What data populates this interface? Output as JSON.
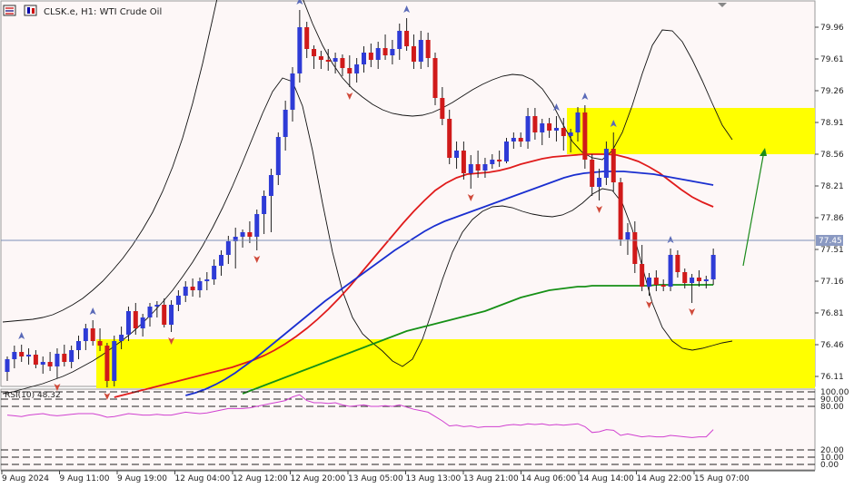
{
  "header": {
    "title": "CLSK.e, H1:  WTI Crude Oil"
  },
  "colors": {
    "background": "#fdf7f7",
    "bull": "#2e3bd6",
    "bear": "#d01a1a",
    "zone": "#ffff00",
    "ma_red": "#e01b1b",
    "ma_blue": "#1a2fd0",
    "ma_green": "#169016",
    "rsi": "#d040d0",
    "arrow": "#1a8a1a"
  },
  "price_panel": {
    "last_price_label": "77.45",
    "ticks": [
      "79.96",
      "79.61",
      "79.26",
      "78.91",
      "78.56",
      "78.21",
      "77.86",
      "77.51",
      "77.16",
      "76.81",
      "76.46",
      "76.11"
    ]
  },
  "rsi_panel": {
    "label": "RSI(10) 48.32",
    "ticks": [
      "100.00",
      "90.00",
      "80.00",
      "20.00",
      "10.00",
      "0.00"
    ]
  },
  "time_axis": [
    "9 Aug 2024",
    "9 Aug 11:00",
    "9 Aug 19:00",
    "12 Aug 04:00",
    "12 Aug 12:00",
    "12 Aug 20:00",
    "13 Aug 05:00",
    "13 Aug 13:00",
    "13 Aug 21:00",
    "14 Aug 06:00",
    "14 Aug 14:00",
    "14 Aug 22:00",
    "15 Aug 07:00"
  ],
  "chart_data": {
    "type": "candlestick",
    "symbol": "CLSK.e",
    "timeframe": "H1",
    "ylim": [
      75.99,
      80.17
    ],
    "rsi_ylim": [
      0,
      100
    ],
    "zones": [
      {
        "from": 78.56,
        "to": 79.07
      },
      {
        "from": 75.98,
        "to": 76.52
      }
    ],
    "candles": [
      [
        76.16,
        76.33,
        76.06,
        76.3
      ],
      [
        76.3,
        76.45,
        76.2,
        76.38
      ],
      [
        76.38,
        76.46,
        76.27,
        76.33
      ],
      [
        76.33,
        76.42,
        76.24,
        76.35
      ],
      [
        76.35,
        76.4,
        76.2,
        76.24
      ],
      [
        76.24,
        76.33,
        76.14,
        76.27
      ],
      [
        76.27,
        76.38,
        76.17,
        76.22
      ],
      [
        76.22,
        76.42,
        76.09,
        76.36
      ],
      [
        76.36,
        76.46,
        76.22,
        76.27
      ],
      [
        76.27,
        76.45,
        76.2,
        76.4
      ],
      [
        76.4,
        76.56,
        76.3,
        76.5
      ],
      [
        76.5,
        76.69,
        76.4,
        76.64
      ],
      [
        76.64,
        76.73,
        76.45,
        76.5
      ],
      [
        76.5,
        76.64,
        76.39,
        76.45
      ],
      [
        76.45,
        76.48,
        75.99,
        76.06
      ],
      [
        76.06,
        76.56,
        76.0,
        76.5
      ],
      [
        76.5,
        76.66,
        76.41,
        76.57
      ],
      [
        76.57,
        76.88,
        76.5,
        76.83
      ],
      [
        76.83,
        76.92,
        76.57,
        76.64
      ],
      [
        76.64,
        76.8,
        76.55,
        76.76
      ],
      [
        76.76,
        76.92,
        76.66,
        76.88
      ],
      [
        76.88,
        76.94,
        76.76,
        76.9
      ],
      [
        76.9,
        76.97,
        76.65,
        76.68
      ],
      [
        76.68,
        76.95,
        76.6,
        76.9
      ],
      [
        76.9,
        77.06,
        76.83,
        77.0
      ],
      [
        77.0,
        77.16,
        76.93,
        77.1
      ],
      [
        77.1,
        77.19,
        76.99,
        77.06
      ],
      [
        77.06,
        77.2,
        76.98,
        77.16
      ],
      [
        77.16,
        77.26,
        77.06,
        77.18
      ],
      [
        77.18,
        77.4,
        77.12,
        77.33
      ],
      [
        77.33,
        77.5,
        77.22,
        77.45
      ],
      [
        77.45,
        77.66,
        77.35,
        77.6
      ],
      [
        77.6,
        77.75,
        77.3,
        77.65
      ],
      [
        77.65,
        77.73,
        77.53,
        77.7
      ],
      [
        77.7,
        77.82,
        77.58,
        77.65
      ],
      [
        77.65,
        77.95,
        77.5,
        77.9
      ],
      [
        77.9,
        78.16,
        77.68,
        78.1
      ],
      [
        78.1,
        78.4,
        77.7,
        78.33
      ],
      [
        78.33,
        78.8,
        78.22,
        78.75
      ],
      [
        78.75,
        79.15,
        78.6,
        79.05
      ],
      [
        79.05,
        79.52,
        78.92,
        79.45
      ],
      [
        79.45,
        80.15,
        79.35,
        79.96
      ],
      [
        79.96,
        80.02,
        79.62,
        79.72
      ],
      [
        79.72,
        79.76,
        79.5,
        79.64
      ],
      [
        79.64,
        79.7,
        79.5,
        79.6
      ],
      [
        79.6,
        79.72,
        79.48,
        79.58
      ],
      [
        79.58,
        79.68,
        79.45,
        79.62
      ],
      [
        79.62,
        79.66,
        79.42,
        79.51
      ],
      [
        79.51,
        79.65,
        79.3,
        79.45
      ],
      [
        79.45,
        79.62,
        79.35,
        79.55
      ],
      [
        79.55,
        79.75,
        79.46,
        79.68
      ],
      [
        79.68,
        79.78,
        79.52,
        79.6
      ],
      [
        79.6,
        79.8,
        79.5,
        79.73
      ],
      [
        79.73,
        79.88,
        79.6,
        79.65
      ],
      [
        79.65,
        79.82,
        79.55,
        79.72
      ],
      [
        79.72,
        80.0,
        79.6,
        79.92
      ],
      [
        79.92,
        80.06,
        79.7,
        79.75
      ],
      [
        79.75,
        79.88,
        79.5,
        79.58
      ],
      [
        79.58,
        79.92,
        79.5,
        79.82
      ],
      [
        79.82,
        79.9,
        79.52,
        79.62
      ],
      [
        79.62,
        79.68,
        79.1,
        79.18
      ],
      [
        79.18,
        79.3,
        78.88,
        78.95
      ],
      [
        78.95,
        79.05,
        78.45,
        78.52
      ],
      [
        78.52,
        78.7,
        78.4,
        78.6
      ],
      [
        78.6,
        78.7,
        78.28,
        78.35
      ],
      [
        78.35,
        78.55,
        78.18,
        78.45
      ],
      [
        78.45,
        78.6,
        78.3,
        78.38
      ],
      [
        78.38,
        78.52,
        78.3,
        78.45
      ],
      [
        78.45,
        78.56,
        78.4,
        78.5
      ],
      [
        78.5,
        78.6,
        78.42,
        78.48
      ],
      [
        78.48,
        78.74,
        78.46,
        78.7
      ],
      [
        78.7,
        78.8,
        78.62,
        78.74
      ],
      [
        78.74,
        78.8,
        78.64,
        78.7
      ],
      [
        78.7,
        79.07,
        78.62,
        78.98
      ],
      [
        78.98,
        79.07,
        78.72,
        78.8
      ],
      [
        78.8,
        78.95,
        78.66,
        78.9
      ],
      [
        78.9,
        78.96,
        78.74,
        78.82
      ],
      [
        78.82,
        78.98,
        78.7,
        78.85
      ],
      [
        78.85,
        78.96,
        78.6,
        78.76
      ],
      [
        78.76,
        78.84,
        78.58,
        78.8
      ],
      [
        78.8,
        79.08,
        78.7,
        79.02
      ],
      [
        79.02,
        79.1,
        78.4,
        78.5
      ],
      [
        78.5,
        78.56,
        78.1,
        78.2
      ],
      [
        78.2,
        78.4,
        78.05,
        78.3
      ],
      [
        78.3,
        78.7,
        78.22,
        78.62
      ],
      [
        78.62,
        78.8,
        78.15,
        78.25
      ],
      [
        78.25,
        78.3,
        77.55,
        77.62
      ],
      [
        77.62,
        77.8,
        77.45,
        77.7
      ],
      [
        77.7,
        77.82,
        77.25,
        77.35
      ],
      [
        77.35,
        77.56,
        77.05,
        77.1
      ],
      [
        77.1,
        77.25,
        77.0,
        77.2
      ],
      [
        77.2,
        77.28,
        77.05,
        77.12
      ],
      [
        77.12,
        77.18,
        77.05,
        77.1
      ],
      [
        77.1,
        77.52,
        77.05,
        77.45
      ],
      [
        77.45,
        77.5,
        77.2,
        77.26
      ],
      [
        77.26,
        77.3,
        77.08,
        77.14
      ],
      [
        77.14,
        77.24,
        76.92,
        77.2
      ],
      [
        77.2,
        77.28,
        77.1,
        77.16
      ],
      [
        77.16,
        77.22,
        77.08,
        77.18
      ],
      [
        77.18,
        77.52,
        77.12,
        77.45
      ]
    ],
    "ma_red": [
      75.88,
      75.91,
      75.94,
      75.97,
      76.0,
      76.03,
      76.06,
      76.09,
      76.12,
      76.15,
      76.18,
      76.21,
      76.25,
      76.29,
      76.34,
      76.4,
      76.47,
      76.55,
      76.64,
      76.74,
      76.85,
      76.97,
      77.1,
      77.24,
      77.38,
      77.52,
      77.66,
      77.8,
      77.93,
      78.05,
      78.16,
      78.24,
      78.3,
      78.34,
      78.35,
      78.36,
      78.38,
      78.41,
      78.45,
      78.48,
      78.51,
      78.53,
      78.54,
      78.55,
      78.56,
      78.56,
      78.56,
      78.55,
      78.52,
      78.48,
      78.42,
      78.35,
      78.26,
      78.17,
      78.09,
      78.03,
      77.98
    ],
    "ma_red_from": 15,
    "ma_blue": [
      75.9,
      75.93,
      75.97,
      76.02,
      76.08,
      76.15,
      76.23,
      76.31,
      76.4,
      76.49,
      76.58,
      76.67,
      76.76,
      76.85,
      76.94,
      77.02,
      77.1,
      77.18,
      77.26,
      77.34,
      77.42,
      77.5,
      77.57,
      77.64,
      77.71,
      77.77,
      77.82,
      77.86,
      77.9,
      77.94,
      77.98,
      78.02,
      78.06,
      78.1,
      78.14,
      78.18,
      78.22,
      78.26,
      78.3,
      78.33,
      78.35,
      78.36,
      78.37,
      78.37,
      78.37,
      78.36,
      78.35,
      78.34,
      78.32,
      78.3,
      78.28,
      78.26,
      78.24,
      78.22
    ],
    "ma_blue_from": 25,
    "ma_green": [
      75.92,
      75.95,
      75.98,
      76.01,
      76.04,
      76.07,
      76.1,
      76.13,
      76.16,
      76.19,
      76.22,
      76.25,
      76.28,
      76.31,
      76.34,
      76.37,
      76.4,
      76.43,
      76.46,
      76.49,
      76.52,
      76.55,
      76.58,
      76.61,
      76.63,
      76.65,
      76.67,
      76.69,
      76.71,
      76.73,
      76.75,
      76.77,
      76.79,
      76.81,
      76.83,
      76.86,
      76.89,
      76.92,
      76.95,
      76.98,
      77.0,
      77.02,
      77.04,
      77.06,
      77.07,
      77.08,
      77.09,
      77.1,
      77.1,
      77.11,
      77.11,
      77.11,
      77.11,
      77.11,
      77.11,
      77.11,
      77.11,
      77.11,
      77.12,
      77.12,
      77.12,
      77.12,
      77.12,
      77.12,
      77.12,
      77.12,
      77.12
    ],
    "ma_green_from": 33,
    "bb_upper": [
      76.71,
      76.72,
      76.73,
      76.74,
      76.76,
      76.79,
      76.84,
      76.9,
      76.97,
      77.06,
      77.16,
      77.28,
      77.41,
      77.56,
      77.73,
      77.92,
      78.15,
      78.42,
      78.74,
      79.12,
      79.56,
      80.05,
      80.55,
      80.95,
      81.2,
      81.3,
      81.26,
      81.1,
      80.86,
      80.58,
      80.28,
      80.0,
      79.76,
      79.56,
      79.4,
      79.28,
      79.19,
      79.11,
      79.05,
      79.01,
      78.99,
      78.98,
      78.99,
      79.02,
      79.07,
      79.13,
      79.2,
      79.27,
      79.33,
      79.38,
      79.42,
      79.44,
      79.43,
      79.38,
      79.28,
      79.12,
      78.9,
      78.7,
      78.58,
      78.52,
      78.5,
      78.6,
      78.8,
      79.1,
      79.45,
      79.76,
      79.93,
      79.92,
      79.8,
      79.6,
      79.37,
      79.12,
      78.88,
      78.72
    ],
    "bb_lower": [
      75.92,
      75.94,
      75.97,
      76.0,
      76.03,
      76.07,
      76.11,
      76.16,
      76.22,
      76.28,
      76.35,
      76.43,
      76.51,
      76.6,
      76.7,
      76.81,
      76.93,
      77.06,
      77.21,
      77.37,
      77.55,
      77.75,
      77.97,
      78.21,
      78.47,
      78.74,
      79.01,
      79.25,
      79.4,
      79.36,
      79.09,
      78.6,
      78.02,
      77.48,
      77.05,
      76.76,
      76.58,
      76.48,
      76.39,
      76.28,
      76.22,
      76.3,
      76.52,
      76.84,
      77.18,
      77.48,
      77.7,
      77.84,
      77.93,
      77.98,
      77.99,
      77.97,
      77.93,
      77.9,
      77.88,
      77.87,
      77.89,
      77.94,
      78.02,
      78.12,
      78.18,
      78.16,
      78.02,
      77.73,
      77.32,
      76.92,
      76.65,
      76.5,
      76.42,
      76.4,
      76.42,
      76.45,
      76.48,
      76.5
    ],
    "arrow_target": 78.6,
    "rsi_values": [
      68,
      67,
      66,
      68,
      69,
      70,
      68,
      67,
      68,
      69,
      70,
      70,
      70,
      68,
      65,
      66,
      68,
      70,
      69,
      68,
      68,
      69,
      68,
      68,
      70,
      72,
      71,
      70,
      71,
      73,
      75,
      77,
      77,
      77,
      78,
      80,
      82,
      84,
      86,
      88,
      93,
      96,
      88,
      85,
      85,
      84,
      85,
      82,
      80,
      81,
      82,
      80,
      80,
      81,
      80,
      82,
      79,
      76,
      74,
      72,
      66,
      60,
      53,
      54,
      52,
      53,
      51,
      52,
      52,
      52,
      54,
      55,
      54,
      56,
      55,
      56,
      54,
      55,
      54,
      55,
      56,
      52,
      44,
      45,
      48,
      47,
      40,
      42,
      40,
      38,
      39,
      38,
      38,
      40,
      39,
      38,
      37,
      38,
      38,
      48
    ]
  }
}
